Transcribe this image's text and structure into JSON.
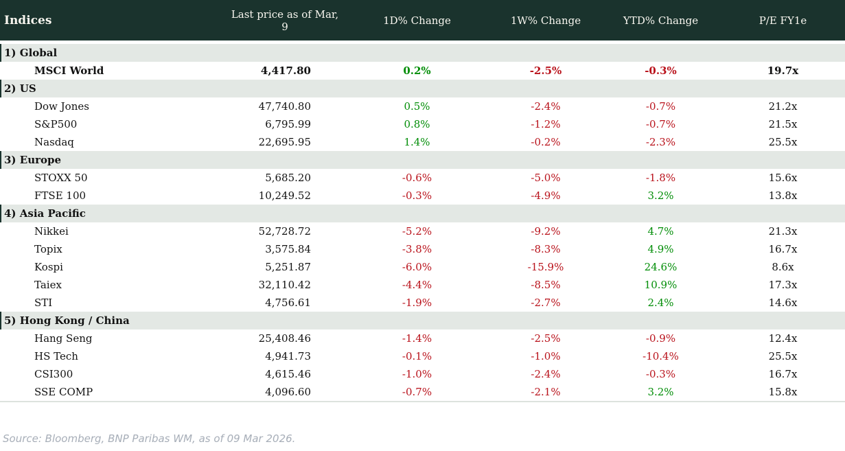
{
  "colors": {
    "header_bg": "#1a332d",
    "header_text": "#f8f6ef",
    "section_bg": "#e3e8e4",
    "positive": "#008d06",
    "negative": "#b9121b",
    "source_text": "#a7aeb8"
  },
  "footer": {
    "source": "Source: Bloomberg, BNP Paribas WM, as of 09 Mar 2026."
  },
  "chart_data": {
    "type": "table",
    "title": "Indices",
    "columns": [
      "Last price as of Mar, 9",
      "1D% Change",
      "1W% Change",
      "YTD% Change",
      "P/E FY1e"
    ],
    "sections": [
      {
        "label": "1) Global",
        "rows": [
          {
            "name": "MSCI World",
            "highlight": true,
            "price": "4,417.80",
            "d1": "0.2%",
            "w1": "-2.5%",
            "ytd": "-0.3%",
            "pe": "19.7x"
          }
        ]
      },
      {
        "label": "2) US",
        "rows": [
          {
            "name": "Dow Jones",
            "price": "47,740.80",
            "d1": "0.5%",
            "w1": "-2.4%",
            "ytd": "-0.7%",
            "pe": "21.2x"
          },
          {
            "name": "S&P500",
            "price": "6,795.99",
            "d1": "0.8%",
            "w1": "-1.2%",
            "ytd": "-0.7%",
            "pe": "21.5x"
          },
          {
            "name": "Nasdaq",
            "price": "22,695.95",
            "d1": "1.4%",
            "w1": "-0.2%",
            "ytd": "-2.3%",
            "pe": "25.5x"
          }
        ]
      },
      {
        "label": "3) Europe",
        "rows": [
          {
            "name": "STOXX 50",
            "price": "5,685.20",
            "d1": "-0.6%",
            "w1": "-5.0%",
            "ytd": "-1.8%",
            "pe": "15.6x"
          },
          {
            "name": "FTSE 100",
            "price": "10,249.52",
            "d1": "-0.3%",
            "w1": "-4.9%",
            "ytd": "3.2%",
            "pe": "13.8x"
          }
        ]
      },
      {
        "label": "4) Asia Pacific",
        "rows": [
          {
            "name": "Nikkei",
            "price": "52,728.72",
            "d1": "-5.2%",
            "w1": "-9.2%",
            "ytd": "4.7%",
            "pe": "21.3x"
          },
          {
            "name": "Topix",
            "price": "3,575.84",
            "d1": "-3.8%",
            "w1": "-8.3%",
            "ytd": "4.9%",
            "pe": "16.7x"
          },
          {
            "name": "Kospi",
            "price": "5,251.87",
            "d1": "-6.0%",
            "w1": "-15.9%",
            "ytd": "24.6%",
            "pe": "8.6x"
          },
          {
            "name": "Taiex",
            "price": "32,110.42",
            "d1": "-4.4%",
            "w1": "-8.5%",
            "ytd": "10.9%",
            "pe": "17.3x"
          },
          {
            "name": "STI",
            "price": "4,756.61",
            "d1": "-1.9%",
            "w1": "-2.7%",
            "ytd": "2.4%",
            "pe": "14.6x"
          }
        ]
      },
      {
        "label": "5) Hong Kong / China",
        "rows": [
          {
            "name": "Hang Seng",
            "price": "25,408.46",
            "d1": "-1.4%",
            "w1": "-2.5%",
            "ytd": "-0.9%",
            "pe": "12.4x"
          },
          {
            "name": "HS Tech",
            "price": "4,941.73",
            "d1": "-0.1%",
            "w1": "-1.0%",
            "ytd": "-10.4%",
            "pe": "25.5x"
          },
          {
            "name": "CSI300",
            "price": "4,615.46",
            "d1": "-1.0%",
            "w1": "-2.4%",
            "ytd": "-0.3%",
            "pe": "16.7x"
          },
          {
            "name": "SSE COMP",
            "price": "4,096.60",
            "d1": "-0.7%",
            "w1": "-2.1%",
            "ytd": "3.2%",
            "pe": "15.8x"
          }
        ]
      }
    ]
  }
}
